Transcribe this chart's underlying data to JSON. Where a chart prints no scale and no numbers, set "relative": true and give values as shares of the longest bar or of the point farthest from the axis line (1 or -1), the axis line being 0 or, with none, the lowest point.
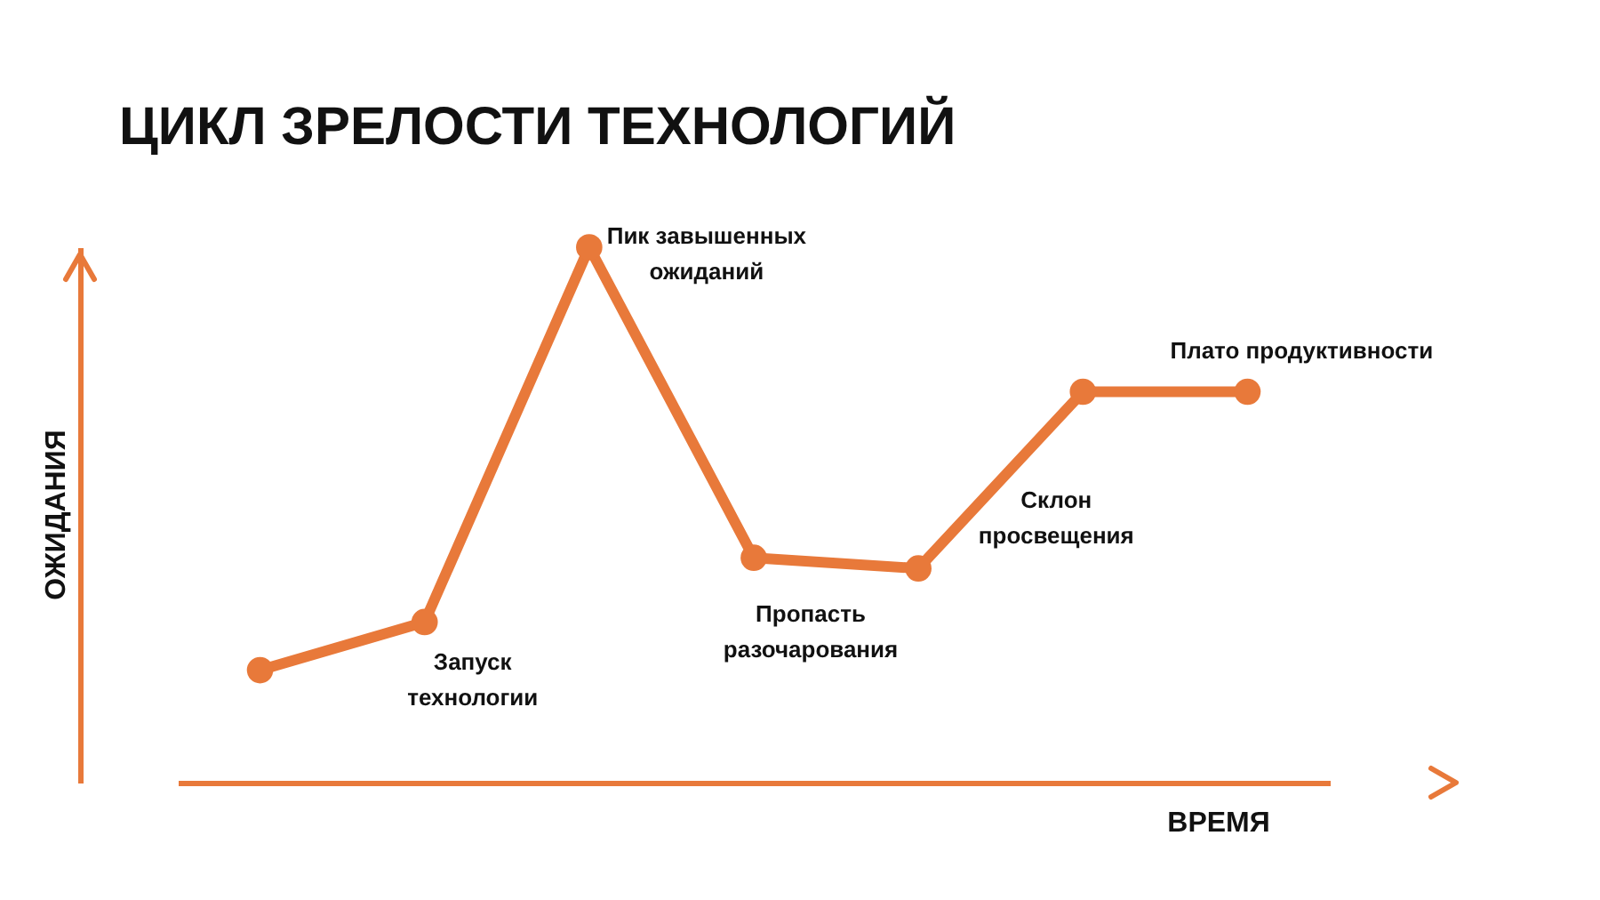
{
  "chart_data": {
    "type": "line",
    "title": "ЦИКЛ ЗРЕЛОСТИ ТЕХНОЛОГИЙ",
    "xlabel": "ВРЕМЯ",
    "ylabel": "ОЖИДАНИЯ",
    "relative": true,
    "tick_labels": false,
    "grid": false,
    "marker": "circle",
    "line_style": "solid",
    "categories": [
      null,
      null,
      null,
      null,
      null,
      null,
      null
    ],
    "series": [
      {
        "color": "#e8793a",
        "values": [
          0.21,
          0.3,
          1,
          0.42,
          0.4,
          0.73,
          0.73
        ]
      }
    ],
    "annotations": [
      "Запуск\nтехнологии",
      "Пик завышенных\nожиданий",
      "Пропасть\nразочарования",
      "Склон\nпросвещения",
      "Плато продуктивности"
    ]
  }
}
